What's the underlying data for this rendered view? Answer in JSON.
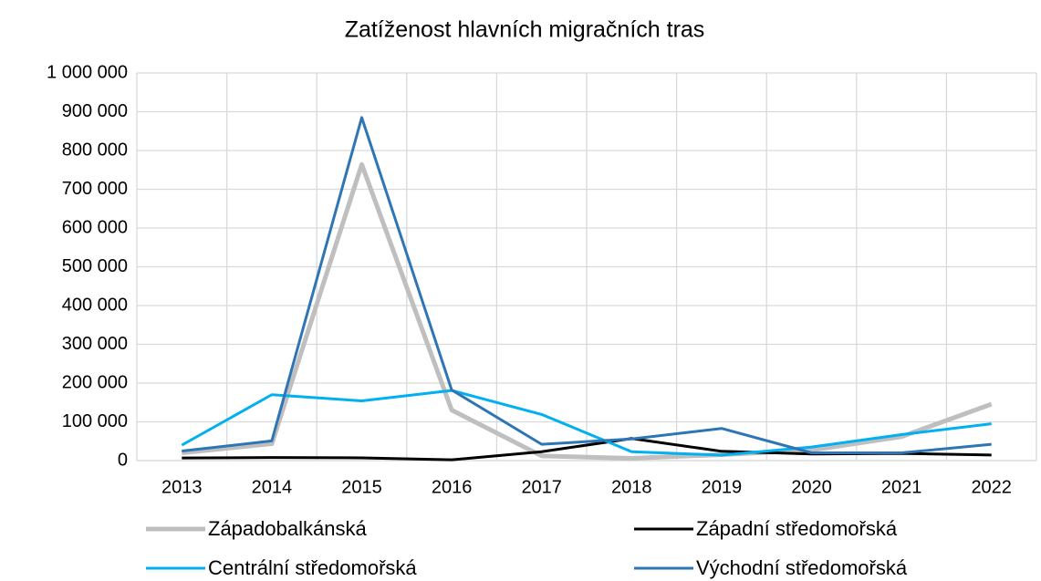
{
  "chart_data": {
    "type": "line",
    "title": "Zatíženost hlavních migračních tras",
    "categories": [
      "2013",
      "2014",
      "2015",
      "2016",
      "2017",
      "2018",
      "2019",
      "2020",
      "2021",
      "2022"
    ],
    "series": [
      {
        "name": "Západobalkánská",
        "color": "#bfbfbf",
        "values": [
          19951,
          43357,
          764038,
          130325,
          12179,
          5869,
          15152,
          26969,
          61735,
          145600
        ]
      },
      {
        "name": "Západní středomořská",
        "color": "#000000",
        "values": [
          6800,
          7800,
          7200,
          2000,
          23000,
          57000,
          24000,
          17000,
          18500,
          14500
        ]
      },
      {
        "name": "Centrální středomořská",
        "color": "#00b0f0",
        "values": [
          40000,
          170000,
          154000,
          181000,
          119000,
          23000,
          14000,
          35000,
          67000,
          95000
        ]
      },
      {
        "name": "Východní středomořská",
        "color": "#2e75b6",
        "values": [
          24800,
          50800,
          885000,
          182000,
          42000,
          56000,
          83000,
          20000,
          20000,
          42000
        ]
      }
    ],
    "ylim": [
      0,
      1000000
    ],
    "yticks": [
      0,
      {
        "value": 100000,
        "label": "100 000"
      },
      {
        "value": 200000,
        "label": "200 000"
      },
      {
        "value": 300000,
        "label": "300 000"
      },
      {
        "value": 400000,
        "label": "400 000"
      },
      {
        "value": 500000,
        "label": "500 000"
      },
      {
        "value": 600000,
        "label": "600 000"
      },
      {
        "value": 700000,
        "label": "700 000"
      },
      {
        "value": 800000,
        "label": "800 000"
      },
      {
        "value": 900000,
        "label": "900 000"
      },
      {
        "value": 1000000,
        "label": "1 000 000"
      }
    ],
    "grid": true
  }
}
